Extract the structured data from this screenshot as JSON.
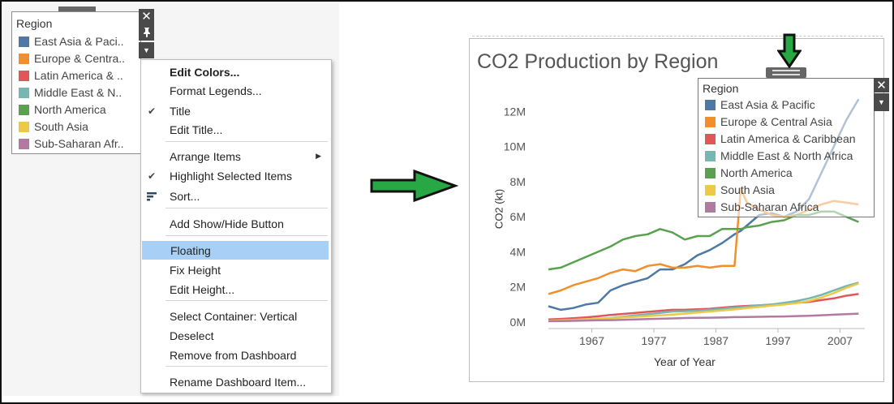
{
  "legend": {
    "title": "Region",
    "items": [
      {
        "label": "East Asia & Paci..",
        "color": "#4e79a7"
      },
      {
        "label": "Europe & Centra..",
        "color": "#f28e2b"
      },
      {
        "label": "Latin America & ..",
        "color": "#e15759"
      },
      {
        "label": "Middle East & N..",
        "color": "#76b7b2"
      },
      {
        "label": "North America",
        "color": "#59a14f"
      },
      {
        "label": "South Asia",
        "color": "#edc948"
      },
      {
        "label": "Sub-Saharan Afr..",
        "color": "#b07aa1"
      }
    ]
  },
  "menu": {
    "items": [
      {
        "label": "Edit Colors...",
        "bold": true
      },
      {
        "label": "Format Legends..."
      },
      {
        "label": "Title",
        "checked": true
      },
      {
        "label": "Edit Title..."
      },
      {
        "label": "Arrange Items",
        "submenu": true
      },
      {
        "label": "Highlight Selected Items",
        "checked": true
      },
      {
        "label": "Sort...",
        "icon": "sort-icon"
      },
      {
        "label": "Add Show/Hide Button"
      },
      {
        "label": "Floating",
        "highlighted": true
      },
      {
        "label": "Fix Height"
      },
      {
        "label": "Edit Height..."
      },
      {
        "label": "Select Container: Vertical"
      },
      {
        "label": "Deselect"
      },
      {
        "label": "Remove from Dashboard"
      },
      {
        "label": "Rename Dashboard Item..."
      }
    ]
  },
  "arrow_icon": "right-arrow-icon",
  "dashboard": {
    "title": "CO2 Production by Region",
    "floating_legend": {
      "title": "Region",
      "items": [
        {
          "label": "East Asia & Pacific",
          "color": "#4e79a7"
        },
        {
          "label": "Europe & Central Asia",
          "color": "#f28e2b"
        },
        {
          "label": "Latin America & Caribbean",
          "color": "#e15759"
        },
        {
          "label": "Middle East & North Africa",
          "color": "#76b7b2"
        },
        {
          "label": "North America",
          "color": "#59a14f"
        },
        {
          "label": "South Asia",
          "color": "#edc948"
        },
        {
          "label": "Sub-Saharan Africa",
          "color": "#b07aa1"
        }
      ]
    }
  },
  "chart_data": {
    "type": "line",
    "title": "CO2 Production by Region",
    "xlabel": "Year of Year",
    "ylabel": "CO2 (kt)",
    "x_ticks": [
      "1967",
      "1977",
      "1987",
      "1997",
      "2007"
    ],
    "y_ticks": [
      "0M",
      "2M",
      "4M",
      "6M",
      "8M",
      "10M",
      "12M"
    ],
    "xlim": [
      1960,
      2011
    ],
    "ylim": [
      0,
      12800000
    ],
    "grid": false,
    "legend": "floating top-right",
    "x": [
      1960,
      1962,
      1964,
      1966,
      1968,
      1970,
      1972,
      1974,
      1976,
      1978,
      1980,
      1982,
      1984,
      1986,
      1988,
      1990,
      1991,
      1992,
      1994,
      1996,
      1998,
      2000,
      2002,
      2004,
      2006,
      2008,
      2010
    ],
    "series": [
      {
        "name": "East Asia & Pacific",
        "color": "#4e79a7",
        "values": [
          900000,
          700000,
          800000,
          1000000,
          1100000,
          1800000,
          2100000,
          2300000,
          2500000,
          3000000,
          3000000,
          3300000,
          3800000,
          4100000,
          4500000,
          5000000,
          5200000,
          5500000,
          6100000,
          6200000,
          6000000,
          6300000,
          7000000,
          8500000,
          10000000,
          11500000,
          12700000
        ]
      },
      {
        "name": "Europe & Central Asia",
        "color": "#f28e2b",
        "values": [
          1600000,
          1800000,
          2100000,
          2300000,
          2500000,
          2800000,
          3000000,
          2900000,
          3200000,
          3300000,
          3100000,
          3100000,
          3200000,
          3100000,
          3200000,
          3200000,
          7600000,
          6800000,
          6400000,
          6100000,
          6000000,
          6100000,
          6400000,
          6700000,
          6900000,
          6800000,
          6700000
        ]
      },
      {
        "name": "Latin America & Caribbean",
        "color": "#e15759",
        "values": [
          150000,
          180000,
          220000,
          270000,
          330000,
          400000,
          460000,
          520000,
          580000,
          640000,
          700000,
          700000,
          730000,
          760000,
          820000,
          880000,
          900000,
          920000,
          950000,
          1000000,
          1050000,
          1100000,
          1150000,
          1250000,
          1350000,
          1500000,
          1600000
        ]
      },
      {
        "name": "Middle East & North Africa",
        "color": "#76b7b2",
        "values": [
          50000,
          70000,
          100000,
          140000,
          180000,
          230000,
          300000,
          380000,
          450000,
          520000,
          600000,
          620000,
          650000,
          700000,
          760000,
          820000,
          850000,
          880000,
          950000,
          1000000,
          1100000,
          1200000,
          1350000,
          1550000,
          1800000,
          2050000,
          2250000
        ]
      },
      {
        "name": "North America",
        "color": "#59a14f",
        "values": [
          3000000,
          3100000,
          3400000,
          3700000,
          4000000,
          4300000,
          4700000,
          4900000,
          5000000,
          5300000,
          5100000,
          4700000,
          4900000,
          4900000,
          5300000,
          5300000,
          5300000,
          5400000,
          5500000,
          5700000,
          5800000,
          6100000,
          6100000,
          6300000,
          6300000,
          6000000,
          5700000
        ]
      },
      {
        "name": "South Asia",
        "color": "#edc948",
        "values": [
          80000,
          100000,
          130000,
          160000,
          190000,
          220000,
          260000,
          300000,
          340000,
          380000,
          430000,
          480000,
          540000,
          600000,
          660000,
          720000,
          760000,
          800000,
          860000,
          940000,
          1000000,
          1080000,
          1200000,
          1400000,
          1650000,
          1950000,
          2200000
        ]
      },
      {
        "name": "Sub-Saharan Africa",
        "color": "#b07aa1",
        "values": [
          50000,
          60000,
          70000,
          90000,
          100000,
          110000,
          130000,
          150000,
          170000,
          190000,
          210000,
          230000,
          240000,
          250000,
          260000,
          280000,
          280000,
          290000,
          300000,
          310000,
          320000,
          340000,
          360000,
          390000,
          420000,
          450000,
          480000
        ]
      }
    ]
  }
}
